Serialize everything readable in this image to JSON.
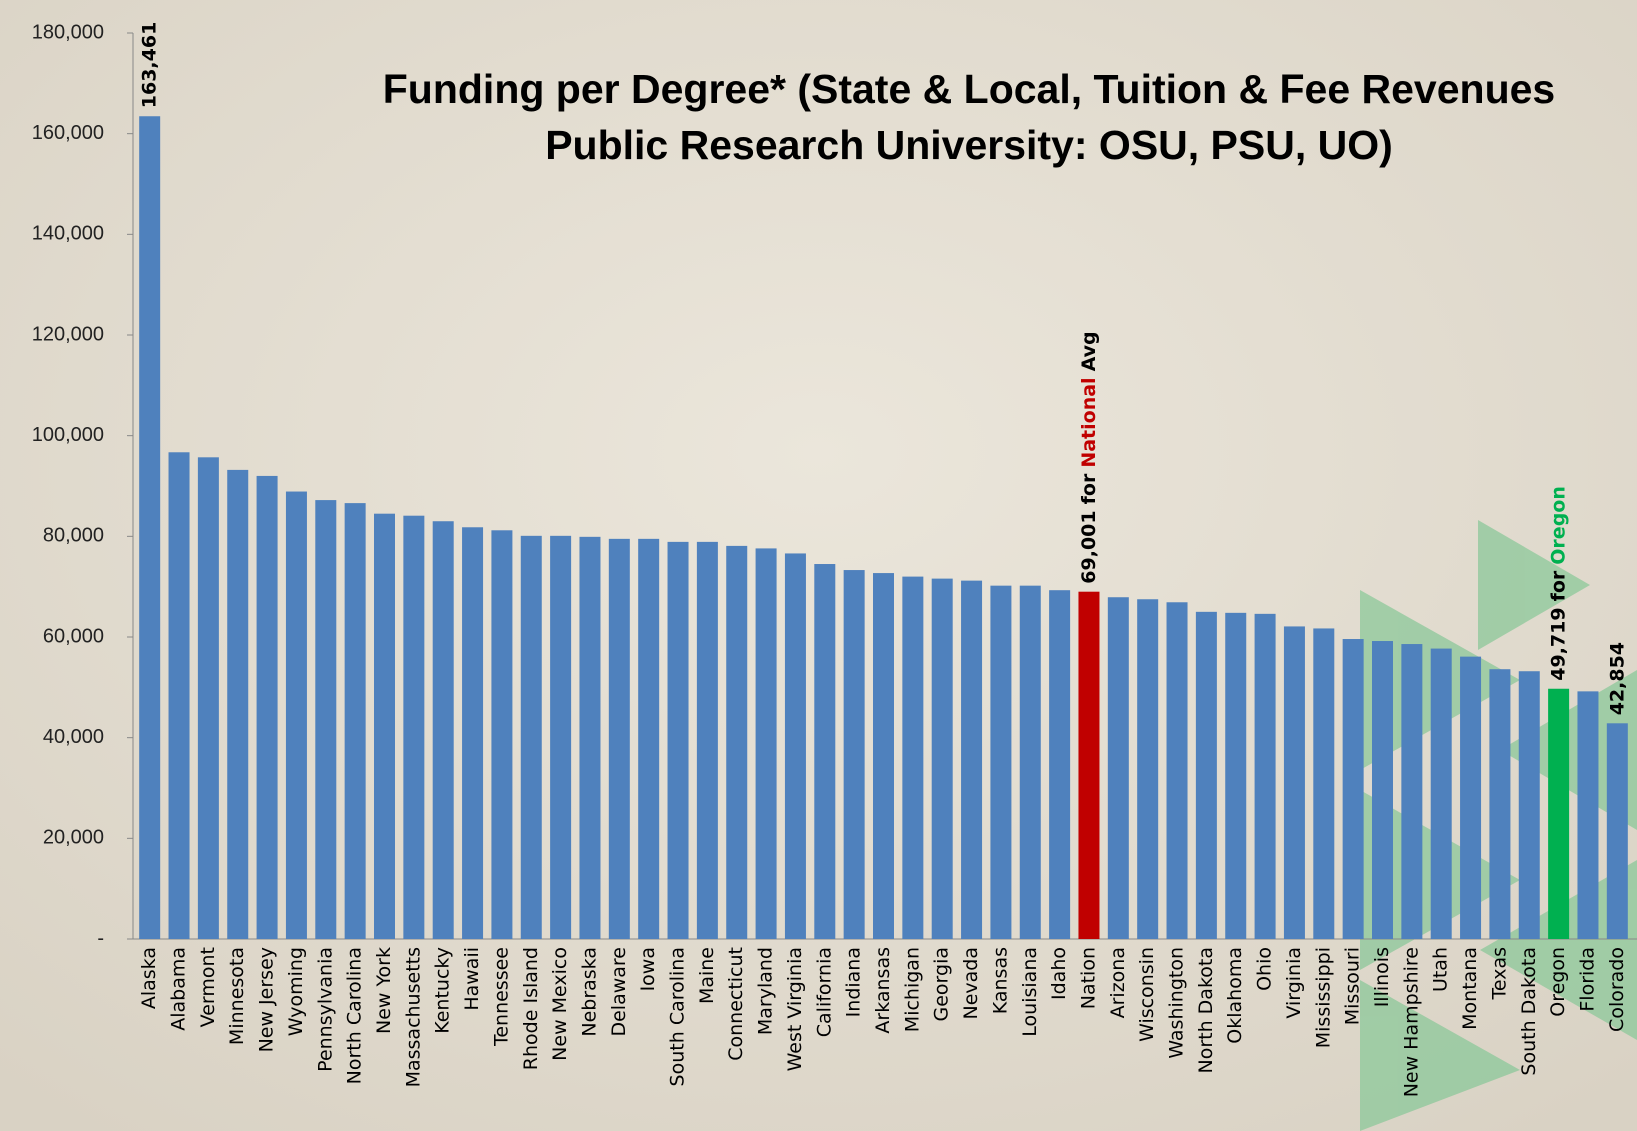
{
  "chart_data": {
    "type": "bar",
    "title": "Funding per Degree*  (State & Local, Tuition & Fee Revenues",
    "subtitle": "Public Research University: OSU, PSU, UO)",
    "categories": [
      "Alaska",
      "Alabama",
      "Vermont",
      "Minnesota",
      "New Jersey",
      "Wyoming",
      "Pennsylvania",
      "North Carolina",
      "New York",
      "Massachusetts",
      "Kentucky",
      "Hawaii",
      "Tennessee",
      "Rhode Island",
      "New Mexico",
      "Nebraska",
      "Delaware",
      "Iowa",
      "South Carolina",
      "Maine",
      "Connecticut",
      "Maryland",
      "West Virginia",
      "California",
      "Indiana",
      "Arkansas",
      "Michigan",
      "Georgia",
      "Nevada",
      "Kansas",
      "Louisiana",
      "Idaho",
      "Nation",
      "Arizona",
      "Wisconsin",
      "Washington",
      "North Dakota",
      "Oklahoma",
      "Ohio",
      "Virginia",
      "Mississippi",
      "Missouri",
      "Illinois",
      "New Hampshire",
      "Utah",
      "Montana",
      "Texas",
      "South Dakota",
      "Oregon",
      "Florida",
      "Colorado"
    ],
    "values": [
      163461,
      96700,
      95700,
      93200,
      92000,
      88900,
      87200,
      86600,
      84500,
      84100,
      83000,
      81800,
      81200,
      80100,
      80100,
      79900,
      79500,
      79500,
      78900,
      78900,
      78100,
      77600,
      76600,
      74500,
      73300,
      72700,
      72000,
      71600,
      71200,
      70200,
      70200,
      69300,
      69001,
      67900,
      67500,
      66900,
      65000,
      64800,
      64600,
      62100,
      61700,
      59600,
      59200,
      58600,
      57700,
      56100,
      53600,
      53200,
      49719,
      49200,
      42854
    ],
    "colors": [
      "#4f81bd",
      "#4f81bd",
      "#4f81bd",
      "#4f81bd",
      "#4f81bd",
      "#4f81bd",
      "#4f81bd",
      "#4f81bd",
      "#4f81bd",
      "#4f81bd",
      "#4f81bd",
      "#4f81bd",
      "#4f81bd",
      "#4f81bd",
      "#4f81bd",
      "#4f81bd",
      "#4f81bd",
      "#4f81bd",
      "#4f81bd",
      "#4f81bd",
      "#4f81bd",
      "#4f81bd",
      "#4f81bd",
      "#4f81bd",
      "#4f81bd",
      "#4f81bd",
      "#4f81bd",
      "#4f81bd",
      "#4f81bd",
      "#4f81bd",
      "#4f81bd",
      "#4f81bd",
      "#c00000",
      "#4f81bd",
      "#4f81bd",
      "#4f81bd",
      "#4f81bd",
      "#4f81bd",
      "#4f81bd",
      "#4f81bd",
      "#4f81bd",
      "#4f81bd",
      "#4f81bd",
      "#4f81bd",
      "#4f81bd",
      "#4f81bd",
      "#4f81bd",
      "#4f81bd",
      "#00b050",
      "#4f81bd",
      "#4f81bd"
    ],
    "value_labels": [
      "163,461",
      null,
      null,
      null,
      null,
      null,
      null,
      null,
      null,
      null,
      null,
      null,
      null,
      null,
      null,
      null,
      null,
      null,
      null,
      null,
      null,
      null,
      null,
      null,
      null,
      null,
      null,
      null,
      null,
      null,
      null,
      null,
      "69,001",
      null,
      null,
      null,
      null,
      null,
      null,
      null,
      null,
      null,
      null,
      null,
      null,
      null,
      null,
      null,
      "49,719",
      null,
      "42,854"
    ],
    "label_notes": [
      null,
      null,
      null,
      null,
      null,
      null,
      null,
      null,
      null,
      null,
      null,
      null,
      null,
      null,
      null,
      null,
      null,
      null,
      null,
      null,
      null,
      null,
      null,
      null,
      null,
      null,
      null,
      null,
      null,
      null,
      null,
      null,
      [
        {
          "text": "for",
          "color": "#000000"
        },
        {
          "text": "National",
          "color": "#c00000"
        },
        {
          "text": "Avg",
          "color": "#000000"
        }
      ],
      null,
      null,
      null,
      null,
      null,
      null,
      null,
      null,
      null,
      null,
      null,
      null,
      null,
      null,
      null,
      [
        {
          "text": "for",
          "color": "#000000"
        },
        {
          "text": "Oregon",
          "color": "#00b050"
        }
      ],
      null,
      null
    ],
    "ylim": [
      0,
      180000
    ],
    "yticks": [
      {
        "value": 0,
        "label": "-"
      },
      {
        "value": 20000,
        "label": "20,000"
      },
      {
        "value": 40000,
        "label": "40,000"
      },
      {
        "value": 60000,
        "label": "60,000"
      },
      {
        "value": 80000,
        "label": "80,000"
      },
      {
        "value": 100000,
        "label": "100,000"
      },
      {
        "value": 120000,
        "label": "120,000"
      },
      {
        "value": 140000,
        "label": "140,000"
      },
      {
        "value": 160000,
        "label": "160,000"
      },
      {
        "value": 180000,
        "label": "180,000"
      }
    ]
  }
}
